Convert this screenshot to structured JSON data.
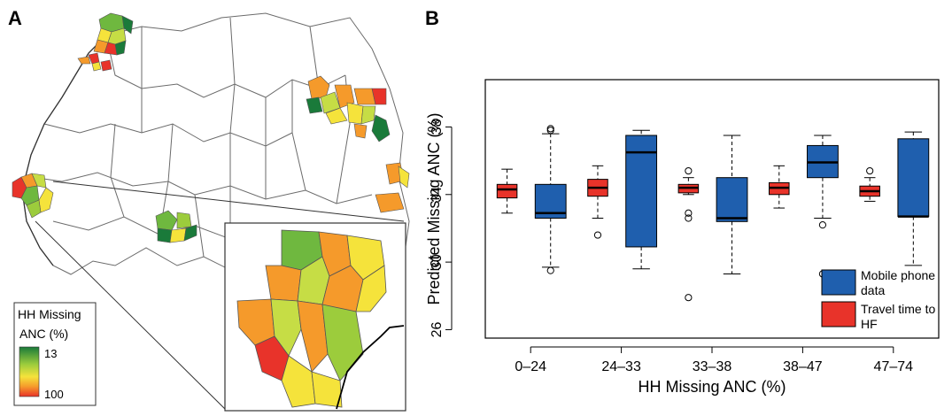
{
  "panel_a": {
    "letter": "A",
    "legend": {
      "title_line1": "HH Missing",
      "title_line2": "ANC (%)",
      "top_value": "13",
      "bottom_value": "100"
    },
    "colors": {
      "low": "#1a7a3a",
      "mid": "#f5e33b",
      "high": "#e8332a",
      "border": "#555555"
    }
  },
  "panel_b": {
    "letter": "B",
    "legend": [
      {
        "line1": "Mobile phone",
        "line2": "data",
        "color": "#1f5fae"
      },
      {
        "line1": "Travel time to",
        "line2": "HF",
        "color": "#e8332a"
      }
    ]
  },
  "chart_data": {
    "type": "box",
    "xlabel": "HH Missing ANC (%)",
    "ylabel": "Predicted Missing ANC (%)",
    "categories": [
      "0–24",
      "24–33",
      "33–38",
      "38–47",
      "47–74"
    ],
    "yticks": [
      26,
      30,
      34,
      38
    ],
    "ylim": [
      25.5,
      40.8
    ],
    "series": [
      {
        "name": "Travel time to HF",
        "color": "#e8332a",
        "boxes": [
          {
            "min": 32.9,
            "q1": 33.8,
            "median": 34.3,
            "q3": 34.6,
            "max": 35.5,
            "outliers": []
          },
          {
            "min": 32.6,
            "q1": 33.9,
            "median": 34.4,
            "q3": 34.9,
            "max": 35.7,
            "outliers": [
              31.6
            ]
          },
          {
            "min": 34.0,
            "q1": 34.1,
            "median": 34.4,
            "q3": 34.6,
            "max": 35.0,
            "outliers": [
              35.4,
              32.9,
              32.6,
              27.9
            ]
          },
          {
            "min": 33.2,
            "q1": 34.0,
            "median": 34.4,
            "q3": 34.7,
            "max": 35.7,
            "outliers": []
          },
          {
            "min": 33.6,
            "q1": 33.9,
            "median": 34.2,
            "q3": 34.5,
            "max": 35.0,
            "outliers": [
              35.4
            ]
          }
        ]
      },
      {
        "name": "Mobile phone data",
        "color": "#1f5fae",
        "boxes": [
          {
            "min": 29.7,
            "q1": 32.6,
            "median": 32.9,
            "q3": 34.6,
            "max": 37.6,
            "outliers": [
              37.9,
              37.8,
              29.5
            ]
          },
          {
            "min": 29.6,
            "q1": 30.9,
            "median": 36.5,
            "q3": 37.5,
            "max": 37.8,
            "outliers": []
          },
          {
            "min": 29.3,
            "q1": 32.4,
            "median": 32.6,
            "q3": 35.0,
            "max": 37.5,
            "outliers": []
          },
          {
            "min": 32.6,
            "q1": 35.0,
            "median": 35.9,
            "q3": 36.9,
            "max": 37.5,
            "outliers": [
              32.2,
              29.3
            ]
          },
          {
            "min": 29.8,
            "q1": 32.7,
            "median": 32.7,
            "q3": 37.3,
            "max": 37.7,
            "outliers": []
          }
        ]
      }
    ]
  }
}
